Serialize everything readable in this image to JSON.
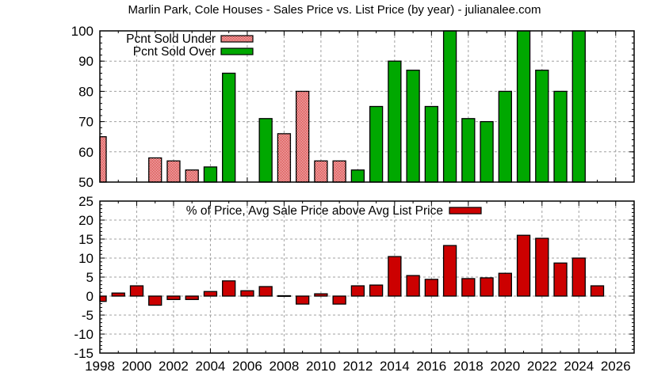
{
  "chart_data": [
    {
      "type": "bar",
      "title": "Marlin Park, Cole Houses - Sales Price vs. List Price (by year) - julianalee.com",
      "xlabel": "",
      "ylabel": "",
      "xlim": [
        1998,
        2027
      ],
      "ylim": [
        50,
        100
      ],
      "yticks": [
        50,
        60,
        70,
        80,
        90,
        100
      ],
      "grid": true,
      "legend_position": "top-left",
      "series": [
        {
          "name": "Pcnt Sold Under",
          "color": "#cc0000",
          "fill": "checker-pattern",
          "points": [
            {
              "x": 1998,
              "y": 65
            },
            {
              "x": 2001,
              "y": 58
            },
            {
              "x": 2002,
              "y": 57
            },
            {
              "x": 2003,
              "y": 54
            },
            {
              "x": 2008,
              "y": 66
            },
            {
              "x": 2009,
              "y": 80
            },
            {
              "x": 2010,
              "y": 57
            },
            {
              "x": 2011,
              "y": 57
            }
          ]
        },
        {
          "name": "Pcnt Sold Over",
          "color": "#00a800",
          "fill": "solid",
          "points": [
            {
              "x": 2004,
              "y": 55
            },
            {
              "x": 2005,
              "y": 86
            },
            {
              "x": 2007,
              "y": 71
            },
            {
              "x": 2012,
              "y": 54
            },
            {
              "x": 2013,
              "y": 75
            },
            {
              "x": 2014,
              "y": 90
            },
            {
              "x": 2015,
              "y": 87
            },
            {
              "x": 2016,
              "y": 75
            },
            {
              "x": 2017,
              "y": 100
            },
            {
              "x": 2018,
              "y": 71
            },
            {
              "x": 2019,
              "y": 70
            },
            {
              "x": 2020,
              "y": 80
            },
            {
              "x": 2021,
              "y": 100
            },
            {
              "x": 2022,
              "y": 87
            },
            {
              "x": 2023,
              "y": 80
            },
            {
              "x": 2024,
              "y": 100
            }
          ]
        }
      ]
    },
    {
      "type": "bar",
      "title": "",
      "xlabel": "",
      "ylabel": "",
      "xlim": [
        1998,
        2027
      ],
      "ylim": [
        -15,
        25
      ],
      "yticks": [
        -15,
        -10,
        -5,
        0,
        5,
        10,
        15,
        20,
        25
      ],
      "xticks": [
        1998,
        2000,
        2002,
        2004,
        2006,
        2008,
        2010,
        2012,
        2014,
        2016,
        2018,
        2020,
        2022,
        2024,
        2026
      ],
      "grid": true,
      "legend_position": "top-center",
      "series": [
        {
          "name": "% of Price, Avg Sale Price above Avg List Price",
          "color": "#cc0000",
          "fill": "solid",
          "points": [
            {
              "x": 1998,
              "y": -1.4
            },
            {
              "x": 1999,
              "y": 0.8
            },
            {
              "x": 2000,
              "y": 2.7
            },
            {
              "x": 2001,
              "y": -2.4
            },
            {
              "x": 2002,
              "y": -0.9
            },
            {
              "x": 2003,
              "y": -0.9
            },
            {
              "x": 2004,
              "y": 1.2
            },
            {
              "x": 2005,
              "y": 4.0
            },
            {
              "x": 2006,
              "y": 1.4
            },
            {
              "x": 2007,
              "y": 2.5
            },
            {
              "x": 2008,
              "y": 0.1
            },
            {
              "x": 2009,
              "y": -2.1
            },
            {
              "x": 2010,
              "y": 0.6
            },
            {
              "x": 2011,
              "y": -2.1
            },
            {
              "x": 2012,
              "y": 2.7
            },
            {
              "x": 2013,
              "y": 2.9
            },
            {
              "x": 2014,
              "y": 10.4
            },
            {
              "x": 2015,
              "y": 5.4
            },
            {
              "x": 2016,
              "y": 4.4
            },
            {
              "x": 2017,
              "y": 13.3
            },
            {
              "x": 2018,
              "y": 4.6
            },
            {
              "x": 2019,
              "y": 4.8
            },
            {
              "x": 2020,
              "y": 6.0
            },
            {
              "x": 2021,
              "y": 16.0
            },
            {
              "x": 2022,
              "y": 15.2
            },
            {
              "x": 2023,
              "y": 8.7
            },
            {
              "x": 2024,
              "y": 10.0
            },
            {
              "x": 2025,
              "y": 2.7
            }
          ]
        }
      ]
    }
  ],
  "header": {
    "title": "Marlin Park, Cole Houses - Sales Price vs. List Price (by year) - julianalee.com"
  },
  "top_chart": {
    "legend": {
      "under_label": "Pcnt Sold Under",
      "over_label": "Pcnt Sold Over"
    }
  },
  "bottom_chart": {
    "legend": {
      "label": "% of Price, Avg Sale Price above Avg List Price"
    }
  },
  "colors": {
    "over": "#00a800",
    "under": "#cc0000",
    "diff": "#cc0000",
    "grid": "#a0a0a0"
  }
}
